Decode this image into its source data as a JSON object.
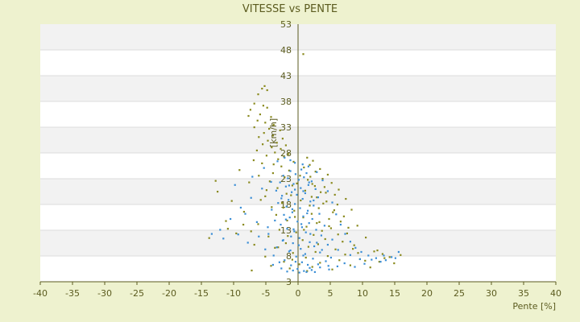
{
  "chart_data": {
    "type": "scatter",
    "title": "VITESSE vs PENTE",
    "xlabel": "Pente [%]",
    "ylabel": "[km/h]",
    "xlim": [
      -40,
      40
    ],
    "ylim": [
      3,
      53
    ],
    "x_ticks": [
      "-40",
      "-35",
      "-30",
      "-25",
      "-20",
      "-15",
      "-10",
      "-5",
      "0",
      "5",
      "10",
      "15",
      "20",
      "25",
      "30",
      "35",
      "40"
    ],
    "y_ticks": [
      "3",
      "8",
      "13",
      "18",
      "23",
      "28",
      "33",
      "38",
      "43",
      "48",
      "53"
    ],
    "grid": "horizontal bands",
    "legend": "none",
    "series": [
      {
        "color": "#8a8a1e",
        "points": [
          [
            0.8,
            47.2
          ],
          [
            -5.2,
            41
          ],
          [
            -5.6,
            40.5
          ],
          [
            -4.8,
            40.2
          ],
          [
            -6.2,
            39.4
          ],
          [
            -6.8,
            37.6
          ],
          [
            -5.4,
            37.2
          ],
          [
            -7.4,
            36.4
          ],
          [
            -4.8,
            36.8
          ],
          [
            -5.9,
            35.5
          ],
          [
            -7.7,
            35.2
          ],
          [
            -4.2,
            35
          ],
          [
            -6.3,
            34.3
          ],
          [
            -5.1,
            33.9
          ],
          [
            -3.8,
            33.5
          ],
          [
            -6.8,
            33
          ],
          [
            -4.5,
            32.7
          ],
          [
            -2.8,
            32.4
          ],
          [
            -5.3,
            31.9
          ],
          [
            -3.9,
            31.4
          ],
          [
            -6.1,
            31.1
          ],
          [
            -2.4,
            30.8
          ],
          [
            -4.7,
            30.4
          ],
          [
            -3.3,
            30
          ],
          [
            -5.5,
            29.7
          ],
          [
            -1.9,
            29.5
          ],
          [
            -4.1,
            29.1
          ],
          [
            -2.7,
            28.8
          ],
          [
            -6.4,
            28.5
          ],
          [
            -3.6,
            28.1
          ],
          [
            -1.5,
            27.8
          ],
          [
            -4.9,
            27.5
          ],
          [
            -2.2,
            27.3
          ],
          [
            1.4,
            27.1
          ],
          [
            -3.1,
            26.8
          ],
          [
            2.3,
            26.5
          ],
          [
            -0.7,
            26.3
          ],
          [
            -5.6,
            26
          ],
          [
            1.8,
            25.7
          ],
          [
            -2.6,
            25.4
          ],
          [
            0.9,
            25.2
          ],
          [
            3.4,
            24.9
          ],
          [
            -1.4,
            24.6
          ],
          [
            2.7,
            24.4
          ],
          [
            -3.9,
            24.1
          ],
          [
            4.6,
            23.8
          ],
          [
            0.3,
            23.6
          ],
          [
            -2.1,
            23.3
          ],
          [
            3.8,
            23
          ],
          [
            1.5,
            22.8
          ],
          [
            -4.4,
            22.5
          ],
          [
            5.2,
            22.2
          ],
          [
            2.2,
            22
          ],
          [
            -0.9,
            21.7
          ],
          [
            4.1,
            21.4
          ],
          [
            -3.2,
            21.2
          ],
          [
            6.3,
            20.9
          ],
          [
            1.1,
            20.7
          ],
          [
            3.5,
            20.4
          ],
          [
            -1.8,
            20.1
          ],
          [
            5.7,
            19.9
          ],
          [
            -5.1,
            19.6
          ],
          [
            2.9,
            19.4
          ],
          [
            7.4,
            19.1
          ],
          [
            0.4,
            18.8
          ],
          [
            4.4,
            18.6
          ],
          [
            -2.5,
            18.3
          ],
          [
            6.1,
            18
          ],
          [
            1.8,
            17.8
          ],
          [
            -4.1,
            17.5
          ],
          [
            3.2,
            17.3
          ],
          [
            8.3,
            17
          ],
          [
            -0.6,
            16.8
          ],
          [
            5.4,
            16.5
          ],
          [
            2.1,
            16.2
          ],
          [
            -3.4,
            16
          ],
          [
            7.1,
            15.7
          ],
          [
            0.8,
            15.5
          ],
          [
            4.8,
            15.2
          ],
          [
            -1.7,
            14.9
          ],
          [
            6.6,
            14.7
          ],
          [
            2.9,
            14.4
          ],
          [
            -6.2,
            14.2
          ],
          [
            9.2,
            13.9
          ],
          [
            1.3,
            13.7
          ],
          [
            5.1,
            13.4
          ],
          [
            -2.9,
            13.1
          ],
          [
            3.7,
            12.9
          ],
          [
            -0.3,
            12.6
          ],
          [
            7.6,
            12.4
          ],
          [
            2.4,
            12.1
          ],
          [
            -4.6,
            11.8
          ],
          [
            10.5,
            11.6
          ],
          [
            4.2,
            11.3
          ],
          [
            0.7,
            11.1
          ],
          [
            6.9,
            10.8
          ],
          [
            -1.9,
            10.5
          ],
          [
            3.1,
            10.3
          ],
          [
            8.7,
            10.1
          ],
          [
            1.6,
            9.8
          ],
          [
            -3.6,
            9.6
          ],
          [
            5.8,
            9.3
          ],
          [
            12.3,
            9.1
          ],
          [
            2.7,
            8.8
          ],
          [
            -0.8,
            8.6
          ],
          [
            7.3,
            8.3
          ],
          [
            15.9,
            8.2
          ],
          [
            4.6,
            8
          ],
          [
            -5.1,
            7.9
          ],
          [
            1.2,
            7.7
          ],
          [
            13.4,
            7.6
          ],
          [
            9.6,
            7.4
          ],
          [
            6.4,
            7.2
          ],
          [
            -2.2,
            6.9
          ],
          [
            3.4,
            6.7
          ],
          [
            14.9,
            6.6
          ],
          [
            0.2,
            6.4
          ],
          [
            8.1,
            6.2
          ],
          [
            -4.2,
            6.1
          ],
          [
            2.2,
            5.9
          ],
          [
            11.2,
            5.8
          ],
          [
            -1.3,
            5.6
          ],
          [
            5.3,
            5.4
          ],
          [
            -7.2,
            5.2
          ],
          [
            1.4,
            5.1
          ],
          [
            -6.8,
            10.2
          ],
          [
            -9.6,
            12.4
          ],
          [
            -11.2,
            14.8
          ],
          [
            -13.8,
            11.5
          ],
          [
            -8.4,
            16.6
          ],
          [
            -12.5,
            20.5
          ],
          [
            -10.3,
            18.7
          ],
          [
            -7.6,
            22.3
          ],
          [
            -12.8,
            22.6
          ],
          [
            -9.1,
            24.7
          ],
          [
            -6.9,
            26.6
          ],
          [
            -8.5,
            14.1
          ],
          [
            -10.9,
            13.3
          ],
          [
            -7.3,
            12.8
          ],
          [
            -5.8,
            18.9
          ],
          [
            -4.9,
            20.8
          ],
          [
            -6.1,
            23.6
          ],
          [
            -3.8,
            25.8
          ],
          [
            2.6,
            21.6
          ],
          [
            3.9,
            18.2
          ],
          [
            5.6,
            16.9
          ],
          [
            4.8,
            13.8
          ],
          [
            6.2,
            12.2
          ],
          [
            7.8,
            13.5
          ],
          [
            3.3,
            14.6
          ],
          [
            2.1,
            19.5
          ],
          [
            4.3,
            20.3
          ],
          [
            1.9,
            23.4
          ],
          [
            -0.2,
            22.1
          ],
          [
            -1.1,
            19.8
          ],
          [
            -2.3,
            17.4
          ],
          [
            -0.5,
            15.6
          ],
          [
            0.9,
            13.1
          ],
          [
            -1.6,
            11.9
          ],
          [
            -3.1,
            9.7
          ],
          [
            -0.9,
            7.3
          ],
          [
            11.8,
            8.9
          ],
          [
            13.1,
            8.4
          ],
          [
            14.2,
            7.8
          ],
          [
            12.6,
            6.9
          ],
          [
            10.4,
            7.1
          ],
          [
            9.3,
            8.6
          ],
          [
            8.5,
            9.4
          ]
        ]
      },
      {
        "color": "#3c8fd6",
        "points": [
          [
            0.5,
            24.8
          ],
          [
            -1.2,
            24.5
          ],
          [
            1.3,
            24.1
          ],
          [
            -0.4,
            23.9
          ],
          [
            -2.3,
            23.6
          ],
          [
            0.9,
            23.3
          ],
          [
            -1.6,
            23.1
          ],
          [
            0.1,
            22.8
          ],
          [
            2.1,
            22.5
          ],
          [
            -2.8,
            22.3
          ],
          [
            -0.7,
            22
          ],
          [
            1.6,
            21.8
          ],
          [
            -1.9,
            21.5
          ],
          [
            0.4,
            21.2
          ],
          [
            2.7,
            21
          ],
          [
            -3.4,
            20.7
          ],
          [
            -1,
            20.4
          ],
          [
            1.1,
            20.2
          ],
          [
            -0.2,
            19.9
          ],
          [
            -2.5,
            19.7
          ],
          [
            3.1,
            19.4
          ],
          [
            0.7,
            19.1
          ],
          [
            -1.5,
            18.9
          ],
          [
            1.9,
            18.6
          ],
          [
            -3.1,
            18.3
          ],
          [
            -0.5,
            18.1
          ],
          [
            2.4,
            17.8
          ],
          [
            -1.8,
            17.6
          ],
          [
            0.3,
            17.3
          ],
          [
            -4.1,
            17
          ],
          [
            1.5,
            16.8
          ],
          [
            -0.9,
            16.5
          ],
          [
            3.3,
            16.2
          ],
          [
            -2.2,
            16
          ],
          [
            0.8,
            15.7
          ],
          [
            -1.3,
            15.5
          ],
          [
            2.2,
            15.2
          ],
          [
            -3.6,
            14.9
          ],
          [
            -0.1,
            14.7
          ],
          [
            1.7,
            14.4
          ],
          [
            -2.7,
            14.1
          ],
          [
            4.1,
            13.9
          ],
          [
            0.6,
            13.6
          ],
          [
            -1.7,
            13.3
          ],
          [
            2.8,
            13.1
          ],
          [
            -0.6,
            12.8
          ],
          [
            1.2,
            12.6
          ],
          [
            -4.6,
            12.3
          ],
          [
            3.6,
            12
          ],
          [
            -1.1,
            11.8
          ],
          [
            0.2,
            11.5
          ],
          [
            5.3,
            11.2
          ],
          [
            -2.4,
            11
          ],
          [
            1.8,
            10.7
          ],
          [
            -0.8,
            10.5
          ],
          [
            4.6,
            10.2
          ],
          [
            2.5,
            9.9
          ],
          [
            -3.3,
            9.7
          ],
          [
            0.4,
            9.4
          ],
          [
            6.2,
            9.2
          ],
          [
            -1.4,
            8.9
          ],
          [
            3.4,
            8.7
          ],
          [
            1.1,
            8.4
          ],
          [
            8.1,
            8.2
          ],
          [
            -0.3,
            7.9
          ],
          [
            5.1,
            7.7
          ],
          [
            2.3,
            7.5
          ],
          [
            9.6,
            7.4
          ],
          [
            -2.1,
            7.2
          ],
          [
            4.3,
            7
          ],
          [
            11.4,
            7.3
          ],
          [
            0.6,
            6.8
          ],
          [
            7.2,
            6.6
          ],
          [
            12.8,
            6.9
          ],
          [
            3.1,
            6.4
          ],
          [
            -1.1,
            6.2
          ],
          [
            14.5,
            7.8
          ],
          [
            6.1,
            6
          ],
          [
            8.8,
            5.9
          ],
          [
            1.8,
            5.7
          ],
          [
            -0.1,
            5.5
          ],
          [
            10.3,
            6.5
          ],
          [
            4.8,
            5.4
          ],
          [
            0.9,
            5.1
          ],
          [
            -1.7,
            5
          ],
          [
            2.6,
            4.9
          ],
          [
            15.6,
            8.8
          ],
          [
            13.3,
            8.1
          ],
          [
            -4.2,
            22.4
          ],
          [
            -5.6,
            21.1
          ],
          [
            -7.3,
            19.3
          ],
          [
            -8.9,
            17.4
          ],
          [
            -10.5,
            15.2
          ],
          [
            -12.1,
            13.1
          ],
          [
            -13.4,
            12.3
          ],
          [
            -6.4,
            14.6
          ],
          [
            -9.3,
            12.2
          ],
          [
            -11.6,
            11.4
          ],
          [
            -7.8,
            10.6
          ],
          [
            -5.1,
            9.3
          ],
          [
            -3.8,
            8.1
          ],
          [
            -2.9,
            6.8
          ],
          [
            -6.1,
            11.8
          ],
          [
            -4.7,
            13.6
          ],
          [
            -8.2,
            16.2
          ],
          [
            -9.8,
            21.8
          ],
          [
            -7.1,
            23.4
          ],
          [
            -5.3,
            25.1
          ],
          [
            -3.2,
            26.4
          ],
          [
            -2.1,
            27.1
          ],
          [
            -1.2,
            26.6
          ],
          [
            -0.5,
            26.1
          ],
          [
            0.7,
            25.8
          ],
          [
            1.6,
            25.4
          ],
          [
            2.9,
            24.3
          ],
          [
            3.8,
            22.7
          ],
          [
            4.6,
            20.6
          ],
          [
            5.3,
            18.4
          ],
          [
            5.9,
            16.1
          ],
          [
            6.6,
            14.1
          ],
          [
            7.3,
            12.3
          ],
          [
            8.1,
            10.8
          ],
          [
            8.9,
            9.6
          ],
          [
            9.8,
            8.8
          ],
          [
            10.9,
            8.1
          ],
          [
            12.1,
            7.6
          ],
          [
            13.6,
            7.2
          ],
          [
            15.1,
            7.6
          ],
          [
            0.2,
            4.8
          ],
          [
            1.3,
            4.9
          ],
          [
            -0.8,
            5.2
          ],
          [
            2.1,
            5.3
          ],
          [
            -2.6,
            5.6
          ],
          [
            3.4,
            5.8
          ],
          [
            -3.9,
            6.3
          ],
          [
            4.7,
            6.1
          ],
          [
            -0.5,
            20.9
          ],
          [
            0.8,
            20.6
          ],
          [
            -1.4,
            21.7
          ],
          [
            1.7,
            22.3
          ],
          [
            -2.6,
            19.2
          ],
          [
            2.4,
            18.8
          ],
          [
            -0.9,
            17.1
          ],
          [
            1.4,
            16.3
          ],
          [
            -1.9,
            15.1
          ],
          [
            0.5,
            14.2
          ],
          [
            -0.7,
            13.2
          ],
          [
            1.9,
            12.3
          ],
          [
            -2.3,
            11.1
          ],
          [
            0.1,
            10.1
          ],
          [
            2.9,
            10.6
          ],
          [
            -1.2,
            9.1
          ],
          [
            0.8,
            8.1
          ],
          [
            3.7,
            9.2
          ],
          [
            -0.4,
            6.9
          ],
          [
            1.5,
            6.3
          ]
        ]
      }
    ]
  }
}
